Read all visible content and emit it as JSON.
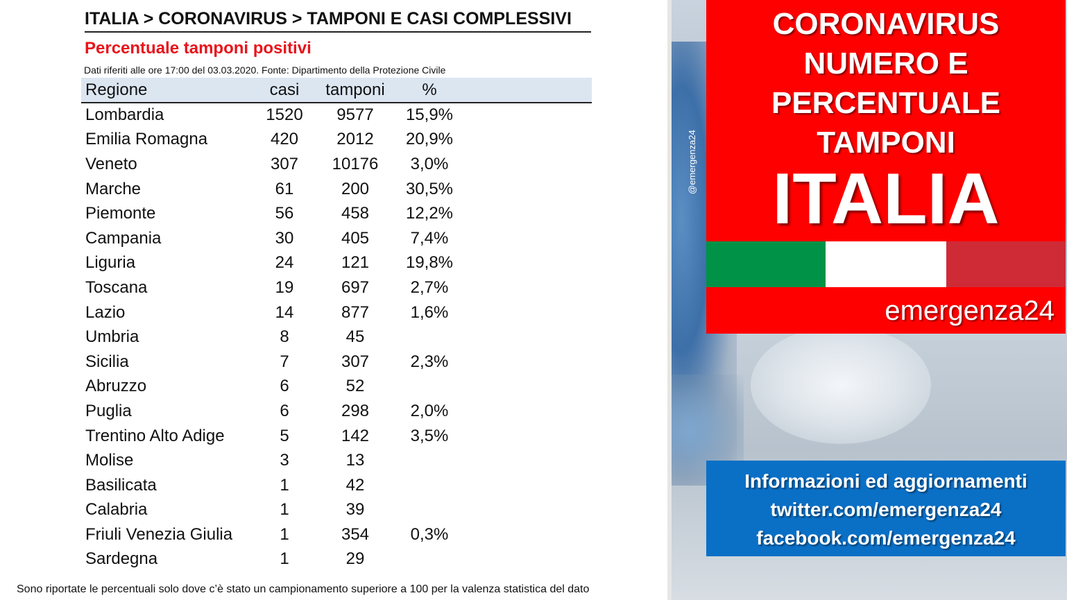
{
  "document": {
    "breadcrumb": "ITALIA > CORONAVIRUS > TAMPONI E CASI COMPLESSIVI",
    "title": "Percentuale tamponi positivi",
    "source": "Dati riferiti alle ore 17:00 del 03.03.2020. Fonte: Dipartimento della Protezione Civile",
    "footnote": "Sono riportate le percentuali solo dove c’è stato un campionamento  superiore a 100 per la valenza statistica del dato",
    "title_color": "#e8141b",
    "header_color": "#dce6f1"
  },
  "table": {
    "headers": {
      "regione": "Regione",
      "casi": "casi",
      "tamponi": "tamponi",
      "pct": "%"
    },
    "rows": [
      {
        "regione": "Lombardia",
        "casi": "1520",
        "tamponi": "9577",
        "pct": "15,9%"
      },
      {
        "regione": "Emilia Romagna",
        "casi": "420",
        "tamponi": "2012",
        "pct": "20,9%"
      },
      {
        "regione": "Veneto",
        "casi": "307",
        "tamponi": "10176",
        "pct": "3,0%"
      },
      {
        "regione": "Marche",
        "casi": "61",
        "tamponi": "200",
        "pct": "30,5%"
      },
      {
        "regione": "Piemonte",
        "casi": "56",
        "tamponi": "458",
        "pct": "12,2%"
      },
      {
        "regione": "Campania",
        "casi": "30",
        "tamponi": "405",
        "pct": "7,4%"
      },
      {
        "regione": "Liguria",
        "casi": "24",
        "tamponi": "121",
        "pct": "19,8%"
      },
      {
        "regione": "Toscana",
        "casi": "19",
        "tamponi": "697",
        "pct": "2,7%"
      },
      {
        "regione": "Lazio",
        "casi": "14",
        "tamponi": "877",
        "pct": "1,6%"
      },
      {
        "regione": "Umbria",
        "casi": "8",
        "tamponi": "45",
        "pct": ""
      },
      {
        "regione": "Sicilia",
        "casi": "7",
        "tamponi": "307",
        "pct": "2,3%"
      },
      {
        "regione": "Abruzzo",
        "casi": "6",
        "tamponi": "52",
        "pct": ""
      },
      {
        "regione": "Puglia",
        "casi": "6",
        "tamponi": "298",
        "pct": "2,0%"
      },
      {
        "regione": "Trentino Alto Adige",
        "casi": "5",
        "tamponi": "142",
        "pct": "3,5%"
      },
      {
        "regione": "Molise",
        "casi": "3",
        "tamponi": "13",
        "pct": ""
      },
      {
        "regione": "Basilicata",
        "casi": "1",
        "tamponi": "42",
        "pct": ""
      },
      {
        "regione": "Calabria",
        "casi": "1",
        "tamponi": "39",
        "pct": ""
      },
      {
        "regione": "Friuli Venezia Giulia",
        "casi": "1",
        "tamponi": "354",
        "pct": "0,3%"
      },
      {
        "regione": "Sardegna",
        "casi": "1",
        "tamponi": "29",
        "pct": ""
      }
    ]
  },
  "side_panel": {
    "handle": "@emergenza24",
    "headline_lines": [
      "CORONAVIRUS",
      "NUMERO E",
      "PERCENTUALE",
      "TAMPONI"
    ],
    "country": "ITALIA",
    "brand": "emergenza24",
    "info_lines": [
      "Informazioni ed aggiornamenti",
      "twitter.com/emergenza24",
      "facebook.com/emergenza24"
    ],
    "colors": {
      "red": "#ff0000",
      "blue": "#0a70c6",
      "flag_green": "#009246",
      "flag_white": "#ffffff",
      "flag_red": "#ce2b37"
    }
  }
}
